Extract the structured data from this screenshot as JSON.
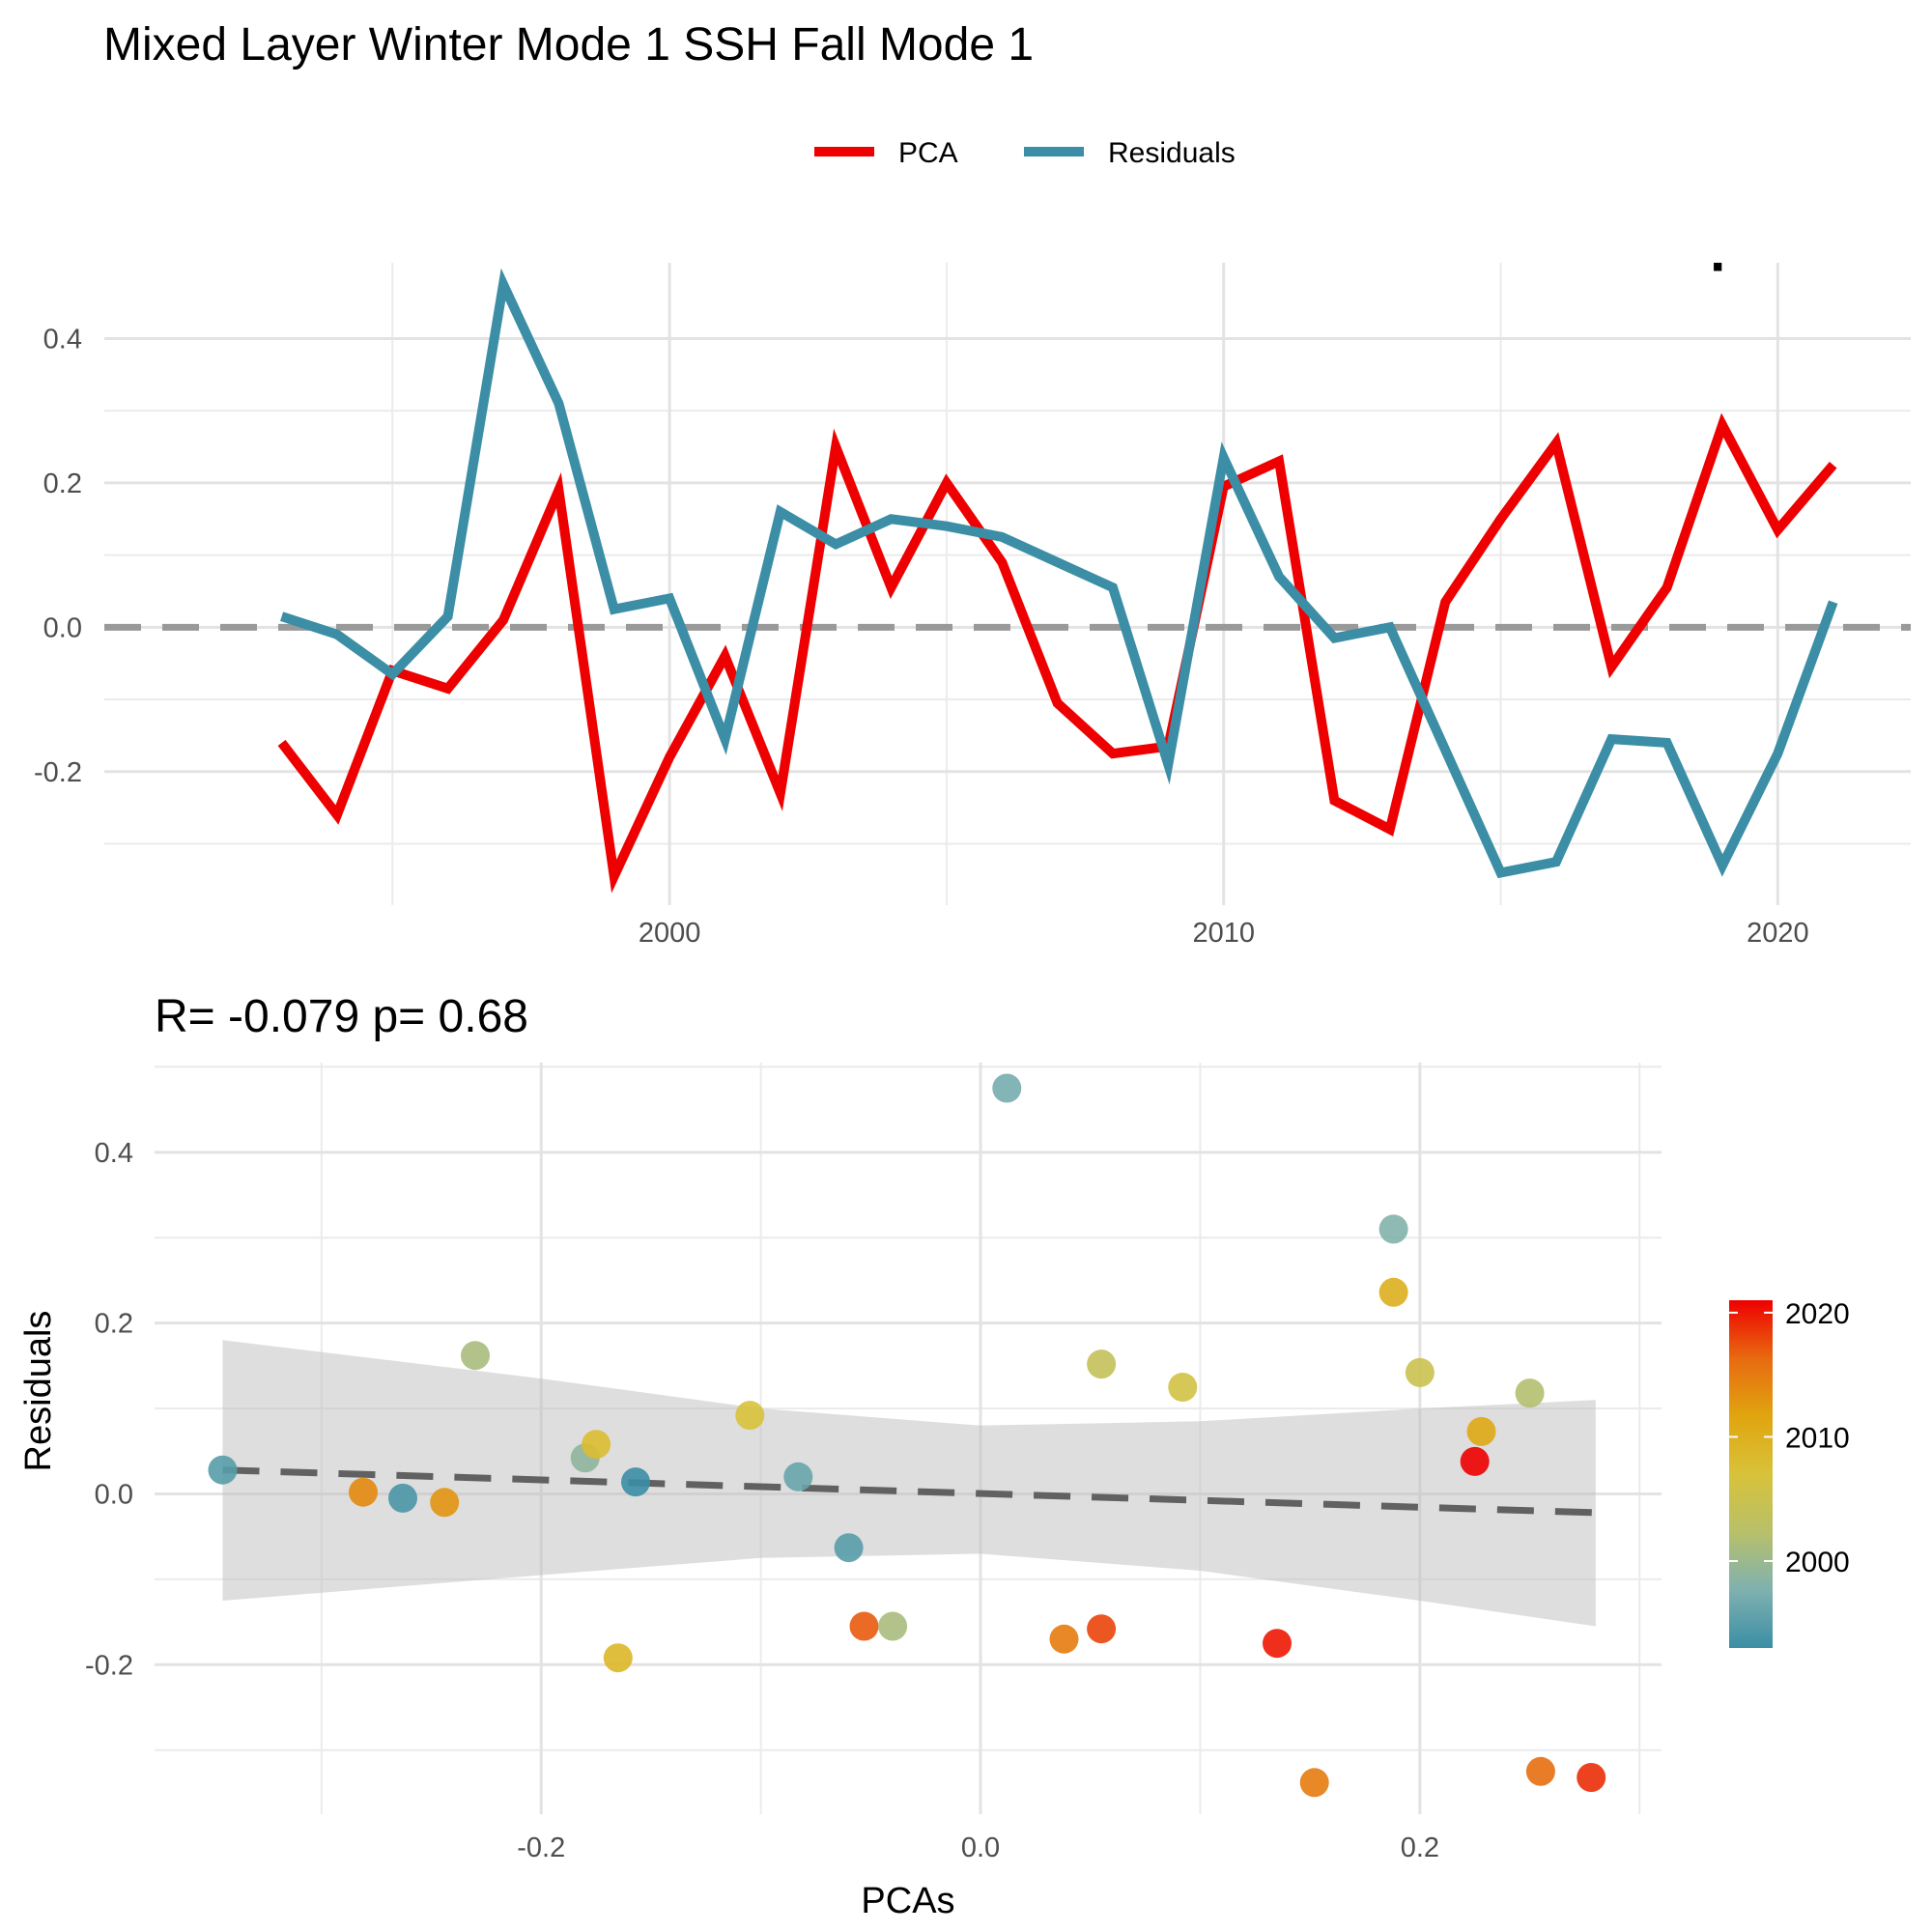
{
  "figure_title": "Mixed Layer Winter Mode 1 SSH Fall Mode 1",
  "top_corner_text": "R= -0.079  p= 0.68",
  "legend": [
    {
      "label": "PCA",
      "color": "#ee0000"
    },
    {
      "label": "Residuals",
      "color": "#3b8ea5"
    }
  ],
  "colorbar": {
    "labels": [
      "2020",
      "2010",
      "2000"
    ],
    "min_year": 1993,
    "max_year": 2021,
    "colors": [
      "#3b8ea5",
      "#7fb1b0",
      "#b8c06a",
      "#d8c23a",
      "#e0a50f",
      "#e86a10",
      "#ee0000"
    ]
  },
  "chart_data": [
    {
      "type": "line",
      "x": [
        1993,
        1994,
        1995,
        1996,
        1997,
        1998,
        1999,
        2000,
        2001,
        2002,
        2003,
        2004,
        2005,
        2006,
        2007,
        2008,
        2009,
        2010,
        2011,
        2012,
        2013,
        2014,
        2015,
        2016,
        2017,
        2018,
        2019,
        2020,
        2021
      ],
      "series": [
        {
          "name": "PCA",
          "color": "#ee0000",
          "values": [
            -0.16,
            -0.26,
            -0.06,
            -0.085,
            0.01,
            0.19,
            -0.345,
            -0.18,
            -0.04,
            -0.23,
            0.25,
            0.055,
            0.2,
            0.09,
            -0.105,
            -0.175,
            -0.165,
            0.195,
            0.23,
            -0.24,
            -0.28,
            0.035,
            0.15,
            0.255,
            -0.055,
            0.055,
            0.28,
            0.135,
            0.225
          ]
        },
        {
          "name": "Residuals",
          "color": "#3b8ea5",
          "values": [
            0.015,
            -0.01,
            -0.065,
            0.015,
            0.475,
            0.31,
            0.025,
            0.04,
            -0.155,
            0.16,
            0.115,
            0.15,
            0.14,
            0.125,
            0.09,
            0.055,
            -0.19,
            0.235,
            0.07,
            -0.015,
            0.0,
            -0.17,
            -0.34,
            -0.325,
            -0.155,
            -0.16,
            -0.33,
            -0.175,
            0.035
          ]
        }
      ],
      "xticks": [
        "2000",
        "2010",
        "2020"
      ],
      "yticks": [
        "-0.2",
        "0.0",
        "0.2",
        "0.4"
      ],
      "xlim": [
        1989.8,
        2022.4
      ],
      "ylim": [
        -0.385,
        0.505
      ],
      "grid": true,
      "reference_line": 0.0
    },
    {
      "type": "scatter",
      "title": "R= -0.079  p= 0.68",
      "xlabel": "PCAs",
      "ylabel": "Residuals",
      "xticks": [
        "-0.2",
        "0.0",
        "0.2"
      ],
      "yticks": [
        "-0.2",
        "0.0",
        "0.2",
        "0.4"
      ],
      "xlim": [
        -0.376,
        0.31
      ],
      "ylim": [
        -0.375,
        0.505
      ],
      "grid": true,
      "trend": {
        "x": [
          -0.345,
          0.28
        ],
        "y": [
          0.028,
          -0.022
        ]
      },
      "band": {
        "x": [
          -0.345,
          -0.2,
          -0.1,
          0.0,
          0.1,
          0.2,
          0.28
        ],
        "upper": [
          0.18,
          0.135,
          0.1,
          0.08,
          0.085,
          0.1,
          0.11
        ],
        "lower": [
          -0.125,
          -0.095,
          -0.075,
          -0.07,
          -0.09,
          -0.125,
          -0.155
        ]
      },
      "points": [
        {
          "x": -0.345,
          "y": 0.028,
          "year": 1995
        },
        {
          "x": -0.281,
          "y": 0.002,
          "year": 2014
        },
        {
          "x": -0.263,
          "y": -0.005,
          "year": 1994
        },
        {
          "x": -0.244,
          "y": -0.01,
          "year": 2013
        },
        {
          "x": -0.23,
          "y": 0.162,
          "year": 2001
        },
        {
          "x": -0.18,
          "y": 0.042,
          "year": 1999
        },
        {
          "x": -0.175,
          "y": 0.058,
          "year": 2008
        },
        {
          "x": -0.165,
          "y": -0.192,
          "year": 2009
        },
        {
          "x": -0.157,
          "y": 0.014,
          "year": 1993
        },
        {
          "x": -0.105,
          "y": 0.092,
          "year": 2007
        },
        {
          "x": -0.083,
          "y": 0.02,
          "year": 1996
        },
        {
          "x": -0.06,
          "y": -0.063,
          "year": 1995
        },
        {
          "x": -0.053,
          "y": -0.155,
          "year": 2017
        },
        {
          "x": -0.04,
          "y": -0.155,
          "year": 2001
        },
        {
          "x": 0.012,
          "y": 0.475,
          "year": 1997
        },
        {
          "x": 0.038,
          "y": -0.17,
          "year": 2015
        },
        {
          "x": 0.055,
          "y": 0.152,
          "year": 2004
        },
        {
          "x": 0.055,
          "y": -0.158,
          "year": 2018
        },
        {
          "x": 0.092,
          "y": 0.125,
          "year": 2006
        },
        {
          "x": 0.135,
          "y": -0.175,
          "year": 2020
        },
        {
          "x": 0.152,
          "y": -0.338,
          "year": 2015
        },
        {
          "x": 0.188,
          "y": 0.31,
          "year": 1998
        },
        {
          "x": 0.188,
          "y": 0.236,
          "year": 2010
        },
        {
          "x": 0.2,
          "y": 0.142,
          "year": 2005
        },
        {
          "x": 0.228,
          "y": 0.073,
          "year": 2011
        },
        {
          "x": 0.225,
          "y": 0.038,
          "year": 2021
        },
        {
          "x": 0.25,
          "y": 0.118,
          "year": 2002
        },
        {
          "x": 0.255,
          "y": -0.325,
          "year": 2016
        },
        {
          "x": 0.278,
          "y": -0.332,
          "year": 2019
        }
      ]
    }
  ]
}
